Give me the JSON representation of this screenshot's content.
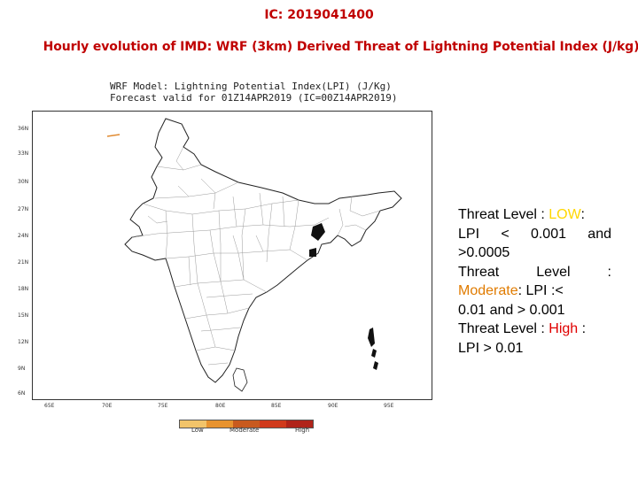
{
  "ic_title": "IC: 2019041400",
  "main_title": "Hourly evolution of IMD: WRF (3km) Derived  Threat of Lightning Potential Index (J/kg)",
  "map": {
    "caption_line1": "WRF Model: Lightning Potential Index(LPI)  (J/Kg)",
    "caption_line2": "Forecast valid for 01Z14APR2019 (IC=00Z14APR2019)",
    "lat_labels": [
      "36N",
      "33N",
      "30N",
      "27N",
      "24N",
      "21N",
      "18N",
      "15N",
      "12N",
      "9N",
      "6N"
    ],
    "lon_labels": [
      "65E",
      "70E",
      "75E",
      "80E",
      "85E",
      "90E",
      "95E"
    ],
    "legend_labels": [
      "Low",
      "Moderate",
      "High"
    ],
    "legend_colors": [
      "#f2c46a",
      "#e8932f",
      "#c85a1e",
      "#d03a1c",
      "#b0241a"
    ]
  },
  "threat": {
    "low_prefix": "Threat Level : ",
    "low_word": "LOW",
    "low_suffix": ":",
    "low_condition": "LPI < 0.001 and >0.0005",
    "mod_prefix": "Threat Level : ",
    "mod_word": "Moderate",
    "mod_suffix": ": LPI :<",
    "mod_condition": "0.01 and > 0.001",
    "high_prefix": "Threat Level : ",
    "high_word": "High",
    "high_suffix": " :",
    "high_condition": "LPI > 0.01",
    "colors": {
      "low": "#ffd700",
      "moderate": "#e07b00",
      "high": "#e00000"
    }
  }
}
